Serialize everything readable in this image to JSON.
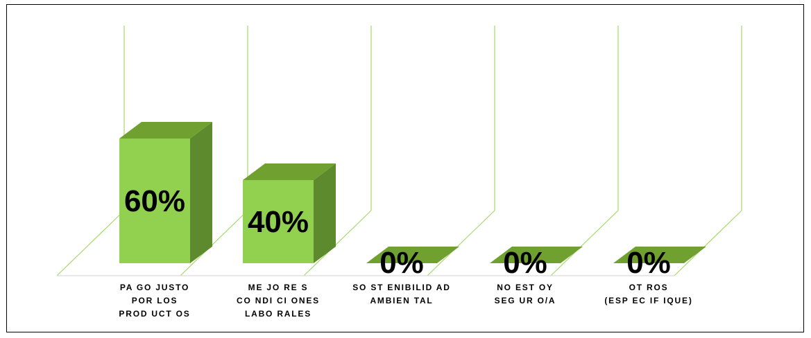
{
  "chart_data": {
    "type": "bar",
    "style": "3d-column",
    "categories": [
      [
        "PA GO  JUSTO",
        "POR  LOS",
        "PROD UCT OS"
      ],
      [
        "ME JO RE S",
        "CO NDI CI ONES",
        "LABO RALES"
      ],
      [
        "SO ST ENIBILID AD",
        "AMBIEN TAL"
      ],
      [
        "NO   EST OY",
        "SEG UR O/A"
      ],
      [
        "OT ROS",
        "(ESP EC IF IQUE)"
      ]
    ],
    "values": [
      60,
      40,
      0,
      0,
      0
    ],
    "data_labels": [
      "60%",
      "40%",
      "0%",
      "0%",
      "0%"
    ],
    "ylim": [
      0,
      100
    ],
    "gridlines": true,
    "legend": "none",
    "colors": {
      "bar_front": "#92D050",
      "bar_top": "#70A030",
      "bar_side": "#5E8A2E",
      "gridline": "#A6D86A",
      "data_label": "#000000"
    }
  }
}
